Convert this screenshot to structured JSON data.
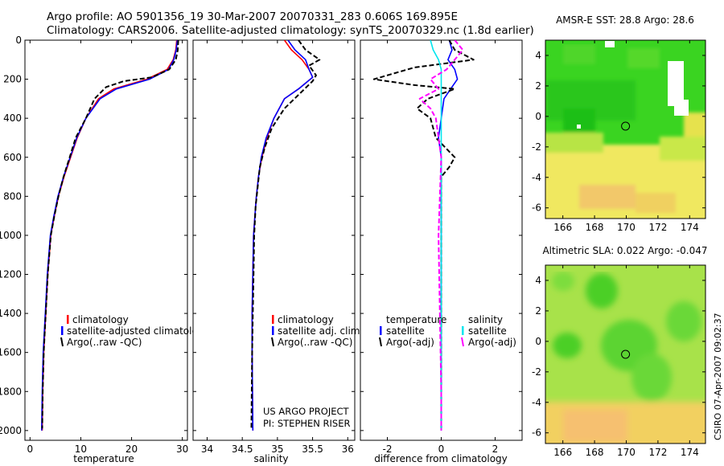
{
  "header": {
    "line1": "Argo profile: AO 5901356_19 30-Mar-2007 20070331_283 0.606S 169.895E",
    "line2": "Climatology: CARS2006. Satellite-adjusted climatology: synTS_20070329.nc (1.8d earlier)"
  },
  "colors": {
    "climatology": "#ff0000",
    "satellite": "#0000ff",
    "argo": "#000000",
    "sal_satellite": "#00e5ee",
    "sal_argo": "#ff00ff",
    "map_marker": "#000000"
  },
  "chart_data": [
    {
      "type": "line",
      "id": "temperature",
      "xlabel": "temperature",
      "ylabel": "",
      "xlim": [
        -1,
        31
      ],
      "ylim": [
        2050,
        0
      ],
      "xticks": [
        0,
        10,
        20,
        30
      ],
      "yticks": [
        0,
        200,
        400,
        600,
        800,
        1000,
        1200,
        1400,
        1600,
        1800,
        2000
      ],
      "legend": {
        "position": "lower-right",
        "entries": [
          "climatology",
          "satellite-adjusted climatology",
          "Argo(..raw -QC)"
        ]
      },
      "series": [
        {
          "name": "climatology",
          "color": "climatology",
          "dash": "solid",
          "x": [
            28.9,
            28.7,
            28.2,
            27.0,
            23.0,
            16.5,
            13.5,
            11.0,
            9.3,
            8.0,
            6.7,
            5.6,
            4.8,
            4.1,
            3.5,
            3.1,
            2.9,
            2.7,
            2.5,
            2.4
          ],
          "y": [
            0,
            50,
            100,
            150,
            200,
            250,
            300,
            400,
            500,
            600,
            700,
            800,
            900,
            1000,
            1200,
            1400,
            1500,
            1600,
            1800,
            2000
          ]
        },
        {
          "name": "satellite",
          "color": "satellite",
          "dash": "solid",
          "x": [
            29.0,
            28.8,
            28.3,
            27.3,
            23.5,
            17.0,
            13.8,
            11.0,
            9.2,
            7.9,
            6.6,
            5.5,
            4.7,
            4.0,
            3.4,
            3.0,
            2.8,
            2.6,
            2.4,
            2.3
          ],
          "y": [
            0,
            50,
            100,
            150,
            200,
            250,
            300,
            400,
            500,
            600,
            700,
            800,
            900,
            1000,
            1200,
            1400,
            1500,
            1600,
            1800,
            2000
          ]
        },
        {
          "name": "Argo(..raw -QC)",
          "color": "argo",
          "dash": "dashed",
          "x": [
            29.2,
            29.1,
            28.7,
            27.4,
            24.0,
            18.5,
            15.0,
            12.7,
            11.0,
            9.0,
            7.8,
            6.6,
            5.6,
            4.8,
            4.1,
            3.5,
            3.1,
            2.9,
            2.7,
            2.5,
            2.4
          ],
          "y": [
            0,
            50,
            100,
            150,
            190,
            210,
            240,
            300,
            400,
            500,
            600,
            700,
            800,
            900,
            1000,
            1200,
            1400,
            1500,
            1600,
            1800,
            1990
          ]
        }
      ]
    },
    {
      "type": "line",
      "id": "salinity",
      "xlabel": "salinity",
      "ylabel": "",
      "xlim": [
        33.8,
        36.1
      ],
      "ylim": [
        2050,
        0
      ],
      "xticks": [
        34,
        34.5,
        35,
        35.5,
        36
      ],
      "yticks": [],
      "legend": {
        "position": "lower-right",
        "entries": [
          "climatology",
          "satellite adj. clim.",
          "Argo(..raw -QC)"
        ]
      },
      "notes": [
        "US ARGO PROJECT",
        "PI: STEPHEN RISER"
      ],
      "series": [
        {
          "name": "climatology",
          "color": "climatology",
          "dash": "solid",
          "x": [
            35.1,
            35.2,
            35.35,
            35.45,
            35.5,
            35.3,
            35.1,
            34.95,
            34.85,
            34.78,
            34.73,
            34.7,
            34.68,
            34.66,
            34.65,
            34.64,
            34.64,
            34.65
          ],
          "y": [
            0,
            50,
            100,
            150,
            190,
            250,
            300,
            400,
            500,
            600,
            700,
            800,
            900,
            1000,
            1200,
            1400,
            1600,
            2000
          ]
        },
        {
          "name": "satellite",
          "color": "satellite",
          "dash": "solid",
          "x": [
            35.15,
            35.25,
            35.4,
            35.45,
            35.5,
            35.3,
            35.1,
            34.95,
            34.84,
            34.77,
            34.73,
            34.7,
            34.68,
            34.66,
            34.65,
            34.64,
            34.64,
            34.65
          ],
          "y": [
            0,
            50,
            100,
            150,
            190,
            250,
            300,
            400,
            500,
            600,
            700,
            800,
            900,
            1000,
            1200,
            1400,
            1600,
            2000
          ]
        },
        {
          "name": "Argo(..raw -QC)",
          "color": "argo",
          "dash": "dashed",
          "x": [
            35.3,
            35.4,
            35.6,
            35.45,
            35.55,
            35.5,
            35.3,
            35.1,
            34.92,
            34.82,
            34.75,
            34.72,
            34.69,
            34.67,
            34.66,
            34.65,
            34.64,
            34.63
          ],
          "y": [
            0,
            50,
            100,
            130,
            180,
            210,
            280,
            350,
            450,
            550,
            650,
            750,
            850,
            1000,
            1200,
            1400,
            1600,
            1990
          ]
        }
      ]
    },
    {
      "type": "line",
      "id": "difference",
      "xlabel": "difference from climatology",
      "ylabel": "",
      "xlim": [
        -3,
        3
      ],
      "ylim": [
        2050,
        0
      ],
      "xticks": [
        -2,
        0,
        2
      ],
      "yticks": [],
      "legend": {
        "position": "lower-right",
        "columns": [
          {
            "heading": "temperature",
            "entries": [
              "satellite",
              "Argo(-adj)"
            ]
          },
          {
            "heading": "salinity",
            "entries": [
              "satellite",
              "Argo(-adj)"
            ]
          }
        ]
      },
      "series": [
        {
          "name": "temperature satellite",
          "color": "satellite",
          "dash": "solid",
          "x": [
            0.3,
            0.4,
            0.25,
            0.5,
            0.6,
            0.35,
            0.1,
            0.0,
            -0.1,
            0.0,
            0.0,
            0.0,
            0.0,
            0.0,
            0.0
          ],
          "y": [
            0,
            50,
            100,
            150,
            200,
            250,
            300,
            400,
            500,
            600,
            800,
            1000,
            1400,
            1800,
            2000
          ]
        },
        {
          "name": "temperature Argo(-adj)",
          "color": "argo",
          "dash": "dashed",
          "x": [
            0.3,
            0.5,
            1.2,
            -1.0,
            -2.5,
            -1.0,
            0.5,
            -0.5,
            -0.9,
            -0.4,
            -0.2,
            0.5,
            0.3,
            0.0,
            0.0,
            0.0,
            0.0,
            0.0
          ],
          "y": [
            0,
            50,
            100,
            140,
            200,
            230,
            250,
            300,
            350,
            400,
            500,
            600,
            650,
            700,
            900,
            1200,
            1600,
            2000
          ]
        },
        {
          "name": "salinity satellite",
          "color": "sal_satellite",
          "dash": "solid",
          "x": [
            -0.4,
            -0.3,
            -0.1,
            0.0,
            0.0,
            0.0,
            0.0,
            0.0,
            0.0,
            0.0
          ],
          "y": [
            0,
            50,
            100,
            150,
            200,
            300,
            500,
            1000,
            1500,
            2000
          ]
        },
        {
          "name": "salinity Argo(-adj)",
          "color": "sal_argo",
          "dash": "dashed",
          "x": [
            0.5,
            0.8,
            0.5,
            0.2,
            -0.4,
            -0.1,
            -0.8,
            -0.4,
            -0.2,
            0.0,
            -0.1,
            -0.05,
            0.0,
            0.0
          ],
          "y": [
            0,
            50,
            100,
            150,
            200,
            250,
            300,
            350,
            400,
            600,
            1000,
            1400,
            1800,
            2000
          ]
        }
      ]
    },
    {
      "type": "heatmap",
      "id": "sst_map",
      "title": "AMSR-E SST: 28.8 Argo: 28.6",
      "xlim": [
        164.9,
        175
      ],
      "ylim": [
        -6.7,
        5
      ],
      "xticks": [
        166,
        168,
        170,
        172,
        174
      ],
      "yticks": [
        -6,
        -4,
        -2,
        0,
        2,
        4
      ],
      "marker": {
        "lon": 169.9,
        "lat": -0.6
      }
    },
    {
      "type": "heatmap",
      "id": "sla_map",
      "title": "Altimetric SLA: 0.022 Argo: -0.047",
      "xlim": [
        164.9,
        175
      ],
      "ylim": [
        -6.7,
        5
      ],
      "xticks": [
        166,
        168,
        170,
        172,
        174
      ],
      "yticks": [
        -6,
        -4,
        -2,
        0,
        2,
        4
      ],
      "marker": {
        "lon": 169.9,
        "lat": -0.6
      }
    }
  ],
  "footer": {
    "stamp": "CSIRO 07-Apr-2007 09:02:37"
  }
}
